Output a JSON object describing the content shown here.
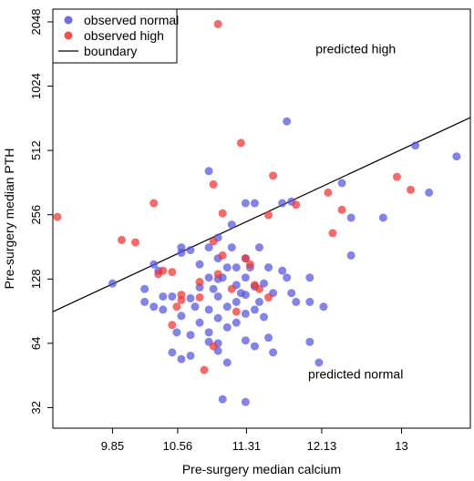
{
  "chart_data": {
    "type": "scatter",
    "xlabel": "Pre-surgery median calcium",
    "ylabel": "Pre-surgery median PTH",
    "x_tick_labels": [
      "9.85",
      "10.56",
      "11.31",
      "12.13",
      "13"
    ],
    "x_ticks": [
      9.85,
      10.56,
      11.31,
      12.13,
      13
    ],
    "y_tick_labels": [
      "32",
      "64",
      "128",
      "256",
      "512",
      "1024",
      "2048"
    ],
    "y_ticks": [
      32,
      64,
      128,
      256,
      512,
      1024,
      2048
    ],
    "y_scale": "log2",
    "xlim": [
      9.2,
      13.75
    ],
    "ylim": [
      30,
      2048
    ],
    "legend": {
      "position": "top-left",
      "entries": [
        {
          "label": "observed normal",
          "kind": "point",
          "color": "#5555dd"
        },
        {
          "label": "observed high",
          "kind": "point",
          "color": "#ee3333"
        },
        {
          "label": "boundary",
          "kind": "line",
          "color": "#000000"
        }
      ]
    },
    "annotations": [
      {
        "text": "predicted high",
        "x": 12.5,
        "y": 1530
      },
      {
        "text": "predicted normal",
        "x": 12.5,
        "y": 46
      }
    ],
    "boundary": {
      "x": [
        9.2,
        13.75
      ],
      "y": [
        90,
        730
      ]
    },
    "series": [
      {
        "name": "observed normal",
        "color": "#5555dd",
        "points": [
          [
            9.85,
            122
          ],
          [
            10.2,
            115
          ],
          [
            10.2,
            100
          ],
          [
            10.3,
            150
          ],
          [
            10.35,
            140
          ],
          [
            10.3,
            95
          ],
          [
            10.4,
            106
          ],
          [
            10.4,
            92
          ],
          [
            10.5,
            58
          ],
          [
            10.5,
            106
          ],
          [
            10.55,
            72
          ],
          [
            10.6,
            180
          ],
          [
            10.6,
            170
          ],
          [
            10.6,
            86
          ],
          [
            10.6,
            54
          ],
          [
            10.7,
            175
          ],
          [
            10.7,
            104
          ],
          [
            10.7,
            70
          ],
          [
            10.7,
            56
          ],
          [
            10.75,
            95
          ],
          [
            10.8,
            150
          ],
          [
            10.8,
            117
          ],
          [
            10.8,
            80
          ],
          [
            10.9,
            180
          ],
          [
            10.9,
            130
          ],
          [
            10.9,
            92
          ],
          [
            10.9,
            72
          ],
          [
            10.9,
            65
          ],
          [
            10.95,
            115
          ],
          [
            11.0,
            200
          ],
          [
            11.0,
            160
          ],
          [
            11.0,
            128
          ],
          [
            11.0,
            106
          ],
          [
            11.0,
            84
          ],
          [
            11.0,
            64
          ],
          [
            11.0,
            59
          ],
          [
            11.05,
            130
          ],
          [
            11.1,
            145
          ],
          [
            11.1,
            95
          ],
          [
            11.1,
            76
          ],
          [
            11.1,
            52
          ],
          [
            11.15,
            230
          ],
          [
            11.15,
            180
          ],
          [
            11.2,
            145
          ],
          [
            11.2,
            120
          ],
          [
            11.2,
            100
          ],
          [
            11.2,
            80
          ],
          [
            11.25,
            110
          ],
          [
            11.3,
            160
          ],
          [
            11.3,
            130
          ],
          [
            11.3,
            108
          ],
          [
            11.3,
            88
          ],
          [
            11.3,
            66
          ],
          [
            11.35,
            145
          ],
          [
            11.4,
            118
          ],
          [
            11.4,
            92
          ],
          [
            11.4,
            62
          ],
          [
            11.45,
            180
          ],
          [
            11.45,
            100
          ],
          [
            11.5,
            122
          ],
          [
            11.5,
            85
          ],
          [
            11.55,
            145
          ],
          [
            11.55,
            68
          ],
          [
            11.6,
            110
          ],
          [
            11.6,
            58
          ],
          [
            11.7,
            290
          ],
          [
            11.7,
            140
          ],
          [
            11.75,
            130
          ],
          [
            11.8,
            110
          ],
          [
            11.85,
            100
          ],
          [
            12.0,
            130
          ],
          [
            12.0,
            100
          ],
          [
            12.0,
            65
          ],
          [
            12.15,
            95
          ],
          [
            12.1,
            52
          ],
          [
            11.05,
            35
          ],
          [
            11.3,
            34
          ],
          [
            11.8,
            295
          ],
          [
            11.3,
            290
          ],
          [
            11.75,
            700
          ],
          [
            10.9,
            410
          ],
          [
            12.35,
            360
          ],
          [
            12.45,
            248
          ],
          [
            12.45,
            165
          ],
          [
            12.8,
            248
          ],
          [
            13.15,
            540
          ],
          [
            13.3,
            325
          ],
          [
            13.6,
            480
          ],
          [
            11.4,
            290
          ]
        ]
      },
      {
        "name": "observed high",
        "color": "#ee3333",
        "points": [
          [
            9.25,
            250
          ],
          [
            9.95,
            195
          ],
          [
            10.1,
            190
          ],
          [
            10.4,
            140
          ],
          [
            10.5,
            138
          ],
          [
            10.6,
            108
          ],
          [
            10.6,
            102
          ],
          [
            10.5,
            78
          ],
          [
            10.35,
            135
          ],
          [
            10.8,
            105
          ],
          [
            10.8,
            124
          ],
          [
            11.0,
            135
          ],
          [
            11.05,
            165
          ],
          [
            10.95,
            192
          ],
          [
            11.05,
            260
          ],
          [
            10.3,
            290
          ],
          [
            11.3,
            160
          ],
          [
            11.35,
            150
          ],
          [
            11.45,
            115
          ],
          [
            11.55,
            105
          ],
          [
            11.6,
            390
          ],
          [
            11.55,
            255
          ],
          [
            11.85,
            285
          ],
          [
            10.95,
            62
          ],
          [
            10.85,
            48
          ],
          [
            11.25,
            555
          ],
          [
            10.95,
            355
          ],
          [
            11.0,
            2000
          ],
          [
            12.2,
            325
          ],
          [
            12.35,
            270
          ],
          [
            12.25,
            210
          ],
          [
            12.95,
            385
          ],
          [
            13.1,
            335
          ],
          [
            10.55,
            95
          ],
          [
            11.2,
            90
          ],
          [
            11.15,
            115
          ],
          [
            11.4,
            120
          ]
        ]
      }
    ]
  }
}
